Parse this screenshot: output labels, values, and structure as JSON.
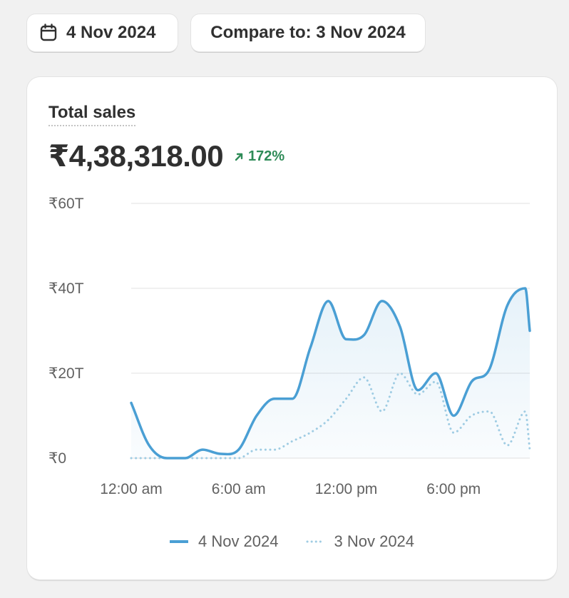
{
  "toolbar": {
    "date_label": "4 Nov 2024",
    "compare_label": "Compare to: 3 Nov 2024",
    "date_icon": "calendar-icon"
  },
  "card": {
    "title": "Total sales",
    "value": "₹4,38,318.00",
    "change": "172%",
    "change_icon": "arrow-up-right-icon"
  },
  "colors": {
    "current": "#4a9fd4",
    "previous": "#9fcce3",
    "change_positive": "#2e8b57"
  },
  "chart_data": {
    "type": "line",
    "ylim": [
      0,
      60
    ],
    "yticks": [
      0,
      20,
      40,
      60
    ],
    "ytick_labels": [
      "₹0",
      "₹20T",
      "₹40T",
      "₹60T"
    ],
    "xtick_labels": [
      "12:00 am",
      "6:00 am",
      "12:00 pm",
      "6:00 pm"
    ],
    "xtick_positions": [
      0,
      6,
      12,
      18
    ],
    "x_range": [
      0,
      22.25
    ],
    "grid": true,
    "legend": "bottom",
    "series": [
      {
        "name": "4 Nov 2024",
        "style": "solid",
        "x": [
          0,
          1,
          2,
          3,
          4,
          5,
          6,
          7,
          8,
          9,
          10,
          11,
          12,
          13,
          14,
          15,
          16,
          17,
          18,
          19,
          20,
          21,
          22,
          22.25
        ],
        "values": [
          13,
          3,
          0,
          0,
          2,
          1,
          2,
          10,
          14,
          14,
          26,
          37,
          28,
          29,
          37,
          31,
          16,
          20,
          10,
          18,
          21,
          36,
          40,
          30
        ]
      },
      {
        "name": "3 Nov 2024",
        "style": "dotted",
        "x": [
          0,
          1,
          2,
          3,
          4,
          5,
          6,
          7,
          8,
          9,
          10,
          11,
          12,
          13,
          14,
          15,
          16,
          17,
          18,
          19,
          20,
          21,
          22,
          22.25
        ],
        "values": [
          0,
          0,
          0,
          0,
          0,
          0,
          0,
          2,
          2,
          4,
          6,
          9,
          14,
          19,
          11,
          20,
          15,
          18,
          6,
          10,
          11,
          3,
          11,
          2
        ]
      }
    ]
  }
}
